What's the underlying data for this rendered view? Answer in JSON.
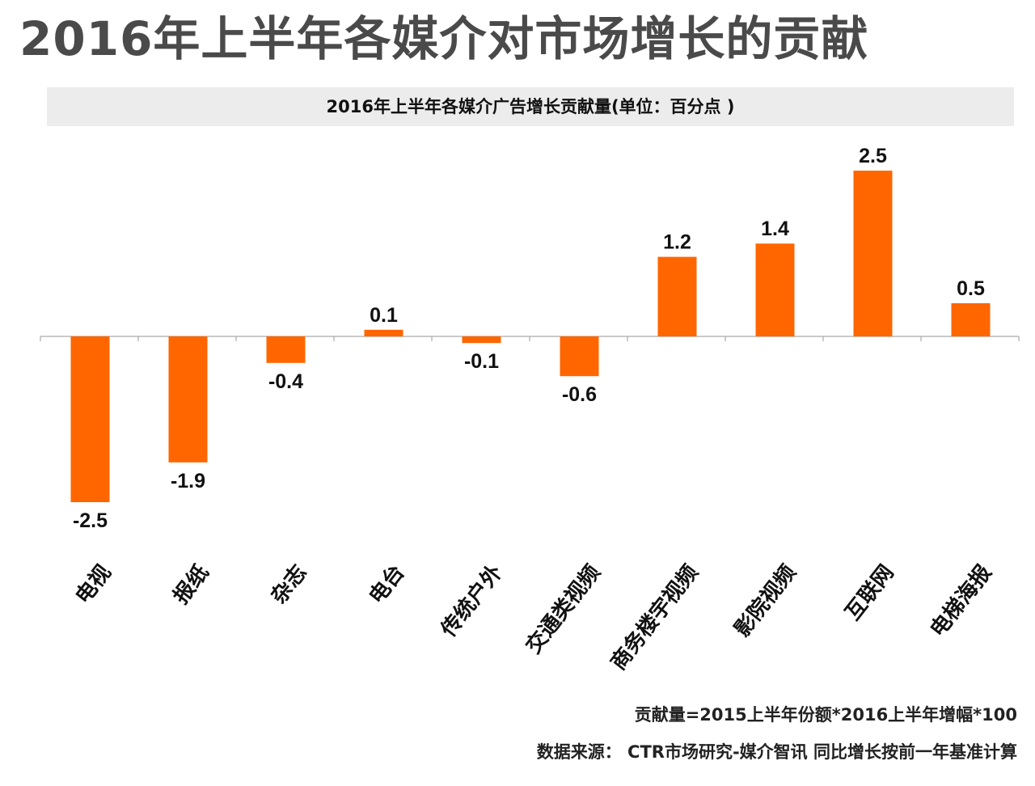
{
  "title": "2016年上半年各媒介对市场增长的贡献",
  "subtitle": "2016年上半年各媒介广告增长贡献量(单位：百分点 )",
  "formula_note": "贡献量=2015上半年份额*2016上半年增幅*100",
  "source_note": "数据来源：  CTR市场研究-媒介智讯   同比增长按前一年基准计算",
  "colors": {
    "bar": "#ff6600",
    "axis": "#aaaaaa",
    "label": "#111111"
  },
  "chart_data": {
    "type": "bar",
    "title": "2016年上半年各媒介广告增长贡献量(单位：百分点 )",
    "categories": [
      "电视",
      "报纸",
      "杂志",
      "电台",
      "传统户外",
      "交通类视频",
      "商务楼宇视频",
      "影院视频",
      "互联网",
      "电梯海报"
    ],
    "values": [
      -2.5,
      -1.9,
      -0.4,
      0.1,
      -0.1,
      -0.6,
      1.2,
      1.4,
      2.5,
      0.5
    ],
    "value_labels": [
      "-2.5",
      "-1.9",
      "-0.4",
      "0.1",
      "-0.1",
      "-0.6",
      "1.2",
      "1.4",
      "2.5",
      "0.5"
    ],
    "xlabel": "",
    "ylabel": "",
    "grid": false
  }
}
